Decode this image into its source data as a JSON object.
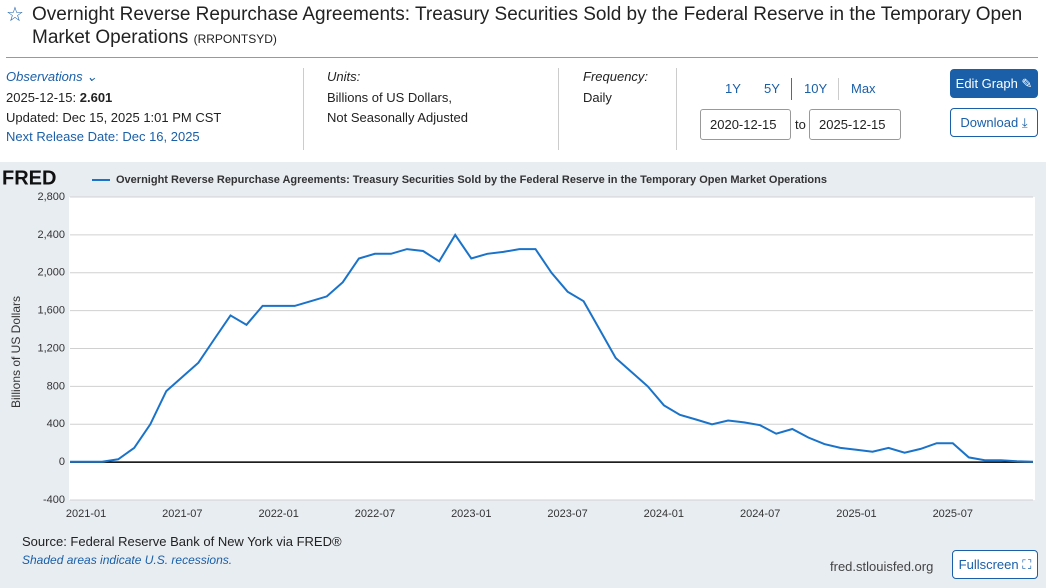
{
  "header": {
    "title": "Overnight Reverse Repurchase Agreements: Treasury Securities Sold by the Federal Reserve in the Temporary Open Market Operations",
    "series_id": "(RRPONTSYD)"
  },
  "info": {
    "observations_label": "Observations",
    "obs_date": "2025-12-15:",
    "obs_value": "2.601",
    "updated": "Updated: Dec 15, 2025 1:01 PM CST",
    "next_release": "Next Release Date: Dec 16, 2025",
    "units_label": "Units:",
    "units_1": "Billions of US Dollars,",
    "units_2": "Not Seasonally Adjusted",
    "frequency_label": "Frequency:",
    "frequency": "Daily"
  },
  "controls": {
    "ranges": [
      "1Y",
      "5Y",
      "10Y",
      "Max"
    ],
    "start_date": "2020-12-15",
    "to": "to",
    "end_date": "2025-12-15",
    "edit_graph": "Edit Graph",
    "download": "Download"
  },
  "chart_data": {
    "type": "line",
    "logo": "FRED",
    "ylabel": "Billions of US Dollars",
    "series": [
      {
        "name": "Overnight Reverse Repurchase Agreements: Treasury Securities Sold by the Federal Reserve in the Temporary Open Market Operations",
        "color": "#1a73c9",
        "x": [
          "2020-12",
          "2021-01",
          "2021-02",
          "2021-03",
          "2021-04",
          "2021-05",
          "2021-06",
          "2021-07",
          "2021-08",
          "2021-09",
          "2021-10",
          "2021-11",
          "2021-12",
          "2022-01",
          "2022-02",
          "2022-03",
          "2022-04",
          "2022-05",
          "2022-06",
          "2022-07",
          "2022-08",
          "2022-09",
          "2022-10",
          "2022-11",
          "2022-12",
          "2023-01",
          "2023-02",
          "2023-03",
          "2023-04",
          "2023-05",
          "2023-06",
          "2023-07",
          "2023-08",
          "2023-09",
          "2023-10",
          "2023-11",
          "2023-12",
          "2024-01",
          "2024-02",
          "2024-03",
          "2024-04",
          "2024-05",
          "2024-06",
          "2024-07",
          "2024-08",
          "2024-09",
          "2024-10",
          "2024-11",
          "2024-12",
          "2025-01",
          "2025-02",
          "2025-03",
          "2025-04",
          "2025-05",
          "2025-06",
          "2025-07",
          "2025-08",
          "2025-09",
          "2025-10",
          "2025-11",
          "2025-12"
        ],
        "values": [
          5,
          3,
          5,
          30,
          150,
          400,
          750,
          900,
          1050,
          1300,
          1550,
          1450,
          1650,
          1650,
          1650,
          1700,
          1750,
          1900,
          2150,
          2200,
          2200,
          2250,
          2230,
          2120,
          2400,
          2150,
          2200,
          2220,
          2250,
          2250,
          2000,
          1800,
          1700,
          1400,
          1100,
          950,
          800,
          600,
          500,
          450,
          400,
          440,
          420,
          390,
          300,
          350,
          260,
          190,
          150,
          130,
          110,
          150,
          100,
          140,
          200,
          200,
          50,
          20,
          20,
          10,
          3
        ]
      }
    ],
    "xlim": [
      "2020-12",
      "2025-12"
    ],
    "xticks": [
      "2021-01",
      "2021-07",
      "2022-01",
      "2022-07",
      "2023-01",
      "2023-07",
      "2024-01",
      "2024-07",
      "2025-01",
      "2025-07"
    ],
    "ylim": [
      -400,
      2800
    ],
    "yticks": [
      -400,
      0,
      400,
      800,
      {
        "value": 1200,
        "label": "1,200"
      },
      {
        "value": 1600,
        "label": "1,600"
      },
      {
        "value": 2000,
        "label": "2,000"
      },
      {
        "value": 2400,
        "label": "2,400"
      },
      {
        "value": 2800,
        "label": "2,800"
      }
    ],
    "grid": true
  },
  "footer": {
    "source": "Source: Federal Reserve Bank of New York via FRED®",
    "recessions": "Shaded areas indicate U.S. recessions.",
    "site": "fred.stlouisfed.org",
    "fullscreen": "Fullscreen"
  }
}
